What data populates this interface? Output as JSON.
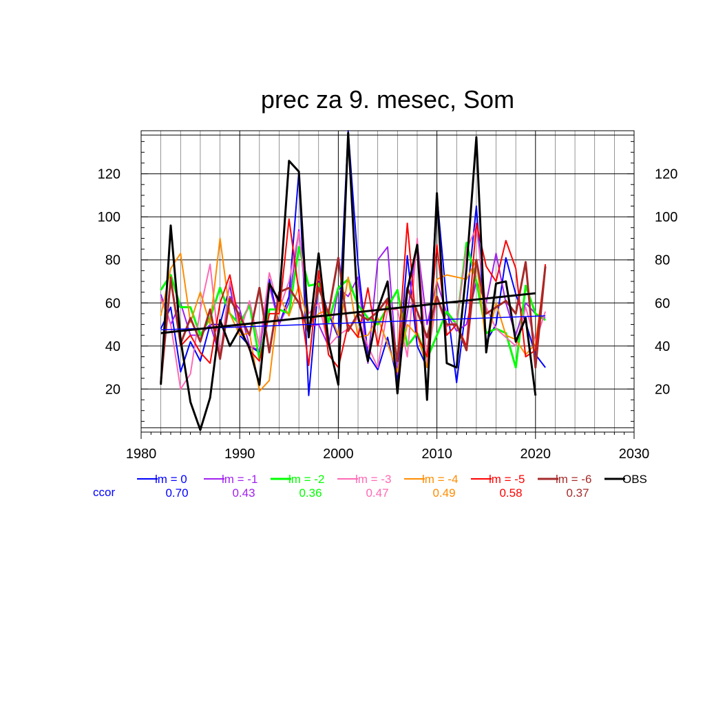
{
  "chart_data": {
    "type": "line",
    "title": "prec za 9. mesec, Som",
    "xlabel": "",
    "ylabel": "",
    "xlim": [
      1980,
      2030
    ],
    "ylim": [
      0,
      140
    ],
    "x_ticks": [
      1980,
      1990,
      2000,
      2010,
      2020,
      2030
    ],
    "y_ticks": [
      20,
      40,
      60,
      80,
      100,
      120
    ],
    "grid": true,
    "legend_position": "bottom",
    "ccor_label": "ccor",
    "ccor_color": "#0000ff",
    "x": [
      1982,
      1983,
      1984,
      1985,
      1986,
      1987,
      1988,
      1989,
      1990,
      1991,
      1992,
      1993,
      1994,
      1995,
      1996,
      1997,
      1998,
      1999,
      2000,
      2001,
      2002,
      2003,
      2004,
      2005,
      2006,
      2007,
      2008,
      2009,
      2010,
      2011,
      2012,
      2013,
      2014,
      2015,
      2016,
      2017,
      2018,
      2019,
      2020,
      2021
    ],
    "series": [
      {
        "name": "lm = 0",
        "ccor": "0.70",
        "color": "#0000ff",
        "width": 2,
        "values": [
          48,
          58,
          28,
          42,
          33,
          50,
          50,
          68,
          45,
          40,
          37,
          71,
          50,
          63,
          121,
          17,
          70,
          55,
          44,
          140,
          78,
          36,
          29,
          44,
          24,
          82,
          40,
          30,
          110,
          60,
          23,
          60,
          105,
          42,
          50,
          81,
          64,
          51,
          36,
          30
        ],
        "trend": [
          47.5,
          54
        ]
      },
      {
        "name": "lm = -1",
        "ccor": "0.43",
        "color": "#a020f0",
        "width": 2,
        "values": [
          64,
          50,
          60,
          45,
          45,
          50,
          35,
          63,
          57,
          40,
          38,
          68,
          50,
          60,
          94,
          49,
          50,
          40,
          67,
          63,
          72,
          32,
          80,
          86,
          27,
          55,
          88,
          50,
          70,
          55,
          47,
          50,
          70,
          60,
          83,
          60,
          45,
          60,
          55,
          53
        ],
        "trend": null
      },
      {
        "name": "lm = -2",
        "ccor": "0.36",
        "color": "#00ff00",
        "width": 3,
        "values": [
          66,
          73,
          58,
          58,
          45,
          53,
          67,
          55,
          50,
          59,
          34,
          57,
          57,
          55,
          86,
          68,
          69,
          51,
          67,
          71,
          59,
          53,
          50,
          58,
          66,
          40,
          46,
          34,
          45,
          56,
          50,
          88,
          70,
          46,
          48,
          46,
          30,
          68,
          55,
          52
        ],
        "trend": null
      },
      {
        "name": "lm = -3",
        "ccor": "0.47",
        "color": "#ff69b4",
        "width": 2,
        "values": [
          62,
          50,
          20,
          27,
          57,
          78,
          35,
          70,
          46,
          61,
          40,
          74,
          57,
          70,
          93,
          55,
          60,
          40,
          45,
          48,
          53,
          40,
          30,
          57,
          57,
          35,
          90,
          32,
          62,
          49,
          51,
          85,
          95,
          58,
          48,
          44,
          40,
          58,
          42,
          56
        ],
        "trend": null
      },
      {
        "name": "lm = -4",
        "ccor": "0.49",
        "color": "#ff8c00",
        "width": 2,
        "values": [
          54,
          76,
          83,
          51,
          65,
          50,
          90,
          55,
          45,
          46,
          19,
          24,
          63,
          54,
          68,
          50,
          55,
          57,
          45,
          72,
          44,
          45,
          53,
          41,
          28,
          50,
          45,
          30,
          71,
          73,
          72,
          71,
          80,
          40,
          60,
          45,
          43,
          36,
          41,
          76
        ],
        "trend": null
      },
      {
        "name": "lm = -5",
        "ccor": "0.58",
        "color": "#ff0000",
        "width": 2,
        "values": [
          25,
          72,
          40,
          45,
          37,
          32,
          60,
          73,
          50,
          38,
          33,
          55,
          55,
          99,
          65,
          31,
          75,
          36,
          30,
          50,
          44,
          67,
          40,
          62,
          33,
          97,
          45,
          35,
          87,
          45,
          50,
          40,
          97,
          77,
          70,
          89,
          76,
          35,
          38,
          78
        ],
        "trend": null
      },
      {
        "name": "lm = -6",
        "ccor": "0.37",
        "color": "#a52a2a",
        "width": 3,
        "values": [
          23,
          71,
          41,
          53,
          42,
          57,
          34,
          62,
          54,
          45,
          67,
          37,
          65,
          67,
          60,
          46,
          67,
          55,
          81,
          47,
          55,
          52,
          56,
          62,
          33,
          67,
          56,
          44,
          63,
          50,
          50,
          38,
          80,
          55,
          58,
          61,
          55,
          79,
          30,
          77
        ],
        "trend": null
      },
      {
        "name": "OBS",
        "ccor": "",
        "color": "#000000",
        "width": 3,
        "values": [
          22,
          96,
          43,
          14,
          1,
          16,
          52,
          40,
          48,
          39,
          22,
          69,
          61,
          126,
          121,
          44,
          83,
          42,
          22,
          139,
          54,
          33,
          57,
          70,
          18,
          66,
          87,
          15,
          111,
          32,
          30,
          76,
          137,
          37,
          69,
          70,
          42,
          53,
          17,
          null
        ],
        "trend": [
          46,
          64.5
        ]
      }
    ]
  }
}
